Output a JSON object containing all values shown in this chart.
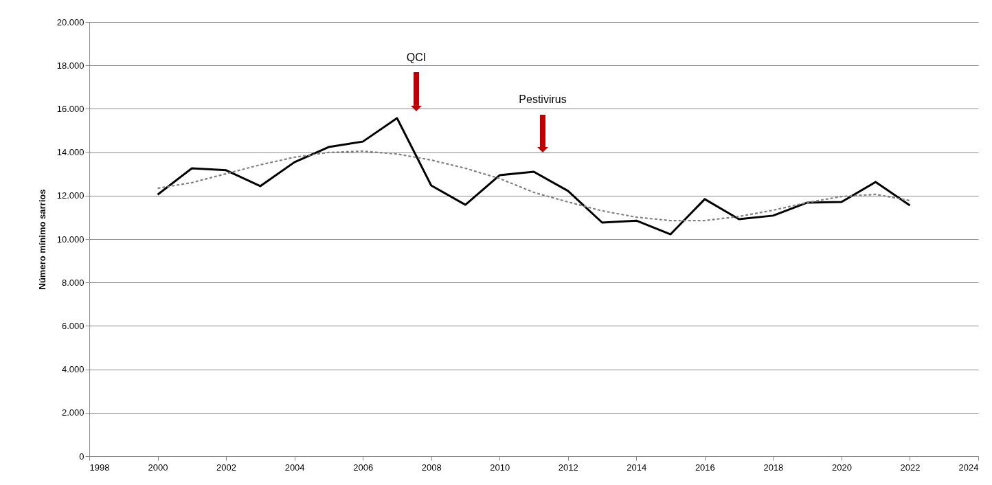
{
  "chart_data": {
    "type": "line",
    "ylabel": "Número mínimo sarrios",
    "x": [
      2000,
      2001,
      2002,
      2003,
      2004,
      2005,
      2006,
      2007,
      2008,
      2009,
      2010,
      2011,
      2012,
      2013,
      2014,
      2015,
      2016,
      2017,
      2018,
      2019,
      2020,
      2021,
      2022
    ],
    "series": [
      {
        "color": "#000000",
        "values": [
          12050,
          13260,
          13170,
          12440,
          13540,
          14240,
          14490,
          15570,
          12470,
          11580,
          12940,
          13100,
          12220,
          10760,
          10850,
          10220,
          11840,
          10920,
          11080,
          11680,
          11710,
          12630,
          11550
        ]
      },
      {
        "color": "#808080",
        "line_style": "dashed",
        "values": [
          12340,
          12600,
          13010,
          13420,
          13770,
          13990,
          14050,
          13920,
          13640,
          13260,
          12790,
          12150,
          11710,
          11300,
          11010,
          10850,
          10850,
          11040,
          11330,
          11680,
          11960,
          12060,
          11770
        ]
      }
    ],
    "annotations": [
      "QCI",
      "Pestivirus"
    ],
    "xlim": [
      1998,
      2024
    ],
    "xticks": [
      1998,
      2000,
      2002,
      2004,
      2006,
      2008,
      2010,
      2012,
      2014,
      2016,
      2018,
      2020,
      2022,
      2024
    ],
    "ylim": [
      0,
      20000
    ],
    "yticks": [
      {
        "value": 0,
        "label": "0"
      },
      {
        "value": 2000,
        "label": "2.000"
      },
      {
        "value": 4000,
        "label": "4.000"
      },
      {
        "value": 6000,
        "label": "6.000"
      },
      {
        "value": 8000,
        "label": "8.000"
      },
      {
        "value": 10000,
        "label": "10.000"
      },
      {
        "value": 12000,
        "label": "12.000"
      },
      {
        "value": 14000,
        "label": "14.000"
      },
      {
        "value": 16000,
        "label": "16.000"
      },
      {
        "value": 18000,
        "label": "18.000"
      },
      {
        "value": 20000,
        "label": "20.000"
      }
    ],
    "grid": "y"
  }
}
